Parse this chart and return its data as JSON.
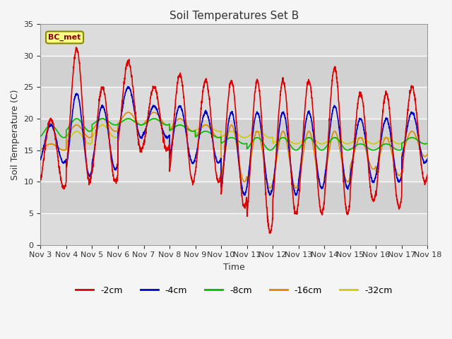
{
  "title": "Soil Temperatures Set B",
  "xlabel": "Time",
  "ylabel": "Soil Temperature (C)",
  "ylim": [
    0,
    35
  ],
  "fig_bg": "#f5f5f5",
  "plot_bg": "#e8e8e8",
  "label_box": "BC_met",
  "series": {
    "-2cm": {
      "color": "#dd0000",
      "lw": 1.2
    },
    "-4cm": {
      "color": "#0000cc",
      "lw": 1.2
    },
    "-8cm": {
      "color": "#00bb00",
      "lw": 1.2
    },
    "-16cm": {
      "color": "#dd8800",
      "lw": 1.2
    },
    "-32cm": {
      "color": "#cccc00",
      "lw": 1.2
    }
  },
  "tick_labels": [
    "Nov 3",
    "Nov 4",
    "Nov 5",
    "Nov 6",
    "Nov 7",
    "Nov 8",
    "Nov 9",
    "Nov 10",
    "Nov 11",
    "Nov 12",
    "Nov 13",
    "Nov 14",
    "Nov 15",
    "Nov 16",
    "Nov 17",
    "Nov 18"
  ],
  "yticks": [
    0,
    5,
    10,
    15,
    20,
    25,
    30,
    35
  ],
  "legend_order": [
    "-2cm",
    "-4cm",
    "-8cm",
    "-16cm",
    "-32cm"
  ]
}
